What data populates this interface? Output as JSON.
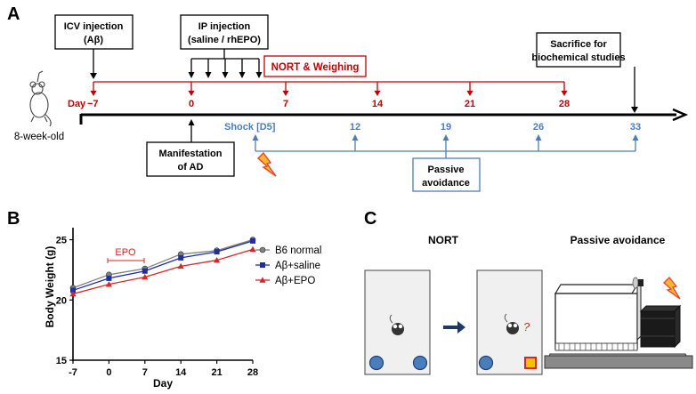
{
  "panel_a": {
    "label": "A",
    "icv_box": [
      "ICV injection",
      "(Aβ)"
    ],
    "ip_box": [
      "IP injection",
      "(saline / rhEPO)"
    ],
    "nort_box": "NORT & Weighing",
    "sacrifice_box": [
      "Sacrifice for",
      "biochemical studies"
    ],
    "mouse_caption": "8-week-old",
    "day_prefix": "Day",
    "day_ticks": [
      "−7",
      "0",
      "7",
      "14",
      "21",
      "28"
    ],
    "shock_ticks": [
      "Shock [D5]",
      "12",
      "19",
      "26",
      "33"
    ],
    "manifestation_box": [
      "Manifestation",
      "of AD"
    ],
    "passive_box": [
      "Passive",
      "avoidance"
    ],
    "colors": {
      "red": "#c00000",
      "blue": "#4a7ebb",
      "black": "#000000"
    }
  },
  "panel_b": {
    "label": "B",
    "epo_label": "EPO"
  },
  "panel_c": {
    "label": "C",
    "nort_title": "NORT",
    "passive_title": "Passive avoidance",
    "question_mark": "?"
  },
  "chart_data": {
    "type": "line",
    "title": "",
    "xlabel": "Day",
    "ylabel": "Body Weight (g)",
    "x": [
      -7,
      0,
      7,
      14,
      21,
      28
    ],
    "xlim": [
      -7,
      28
    ],
    "ylim": [
      15,
      26
    ],
    "yticks": [
      15,
      20,
      25
    ],
    "xticks": [
      "-7",
      "0",
      "7",
      "14",
      "21",
      "28"
    ],
    "legend_position": "top-right",
    "series": [
      {
        "name": "B6 normal",
        "color": "#808080",
        "marker": "circle",
        "values": [
          21.0,
          22.1,
          22.6,
          23.8,
          24.1,
          25.0
        ]
      },
      {
        "name": "Aβ+saline",
        "color": "#1f2fa0",
        "marker": "square",
        "values": [
          20.8,
          21.8,
          22.4,
          23.5,
          24.0,
          24.9
        ]
      },
      {
        "name": "Aβ+EPO",
        "color": "#d62728",
        "marker": "triangle",
        "values": [
          20.5,
          21.3,
          21.9,
          22.8,
          23.3,
          24.2
        ]
      }
    ]
  }
}
